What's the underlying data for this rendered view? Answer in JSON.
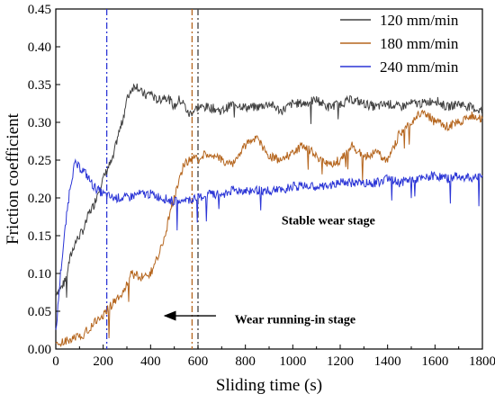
{
  "chart_data": {
    "type": "line",
    "title": "",
    "xlabel": "Sliding time (s)",
    "ylabel": "Friction coefficient",
    "xlim": [
      0,
      1800
    ],
    "ylim": [
      0,
      0.45
    ],
    "x_ticks": [
      0,
      200,
      400,
      600,
      800,
      1000,
      1200,
      1400,
      1600,
      1800
    ],
    "y_ticks": [
      "0.00",
      "0.05",
      "0.10",
      "0.15",
      "0.20",
      "0.25",
      "0.30",
      "0.35",
      "0.40",
      "0.45"
    ],
    "grid": false,
    "legend_position": "top-right",
    "series": [
      {
        "name": "120 mm/min",
        "color": "#404040",
        "x": [
          0,
          20,
          40,
          60,
          80,
          100,
          120,
          140,
          160,
          180,
          200,
          220,
          240,
          260,
          280,
          300,
          320,
          340,
          360,
          380,
          400,
          420,
          440,
          460,
          480,
          500,
          520,
          540,
          560,
          580,
          600,
          650,
          700,
          750,
          800,
          850,
          900,
          950,
          1000,
          1050,
          1100,
          1150,
          1200,
          1250,
          1300,
          1350,
          1400,
          1450,
          1500,
          1550,
          1600,
          1650,
          1700,
          1750,
          1800
        ],
        "y": [
          0.075,
          0.08,
          0.09,
          0.12,
          0.14,
          0.15,
          0.16,
          0.18,
          0.19,
          0.21,
          0.225,
          0.24,
          0.25,
          0.28,
          0.3,
          0.33,
          0.345,
          0.35,
          0.34,
          0.335,
          0.34,
          0.33,
          0.33,
          0.335,
          0.33,
          0.32,
          0.33,
          0.325,
          0.31,
          0.315,
          0.32,
          0.32,
          0.315,
          0.325,
          0.32,
          0.32,
          0.325,
          0.315,
          0.325,
          0.325,
          0.33,
          0.32,
          0.325,
          0.33,
          0.325,
          0.32,
          0.325,
          0.32,
          0.325,
          0.325,
          0.33,
          0.32,
          0.325,
          0.32,
          0.315
        ]
      },
      {
        "name": "180 mm/min",
        "color": "#b5651d",
        "x": [
          0,
          40,
          80,
          120,
          160,
          200,
          240,
          280,
          320,
          360,
          400,
          430,
          460,
          490,
          520,
          540,
          560,
          580,
          600,
          640,
          700,
          750,
          800,
          850,
          900,
          950,
          1000,
          1050,
          1100,
          1150,
          1200,
          1250,
          1300,
          1350,
          1400,
          1450,
          1500,
          1550,
          1600,
          1650,
          1700,
          1750,
          1800
        ],
        "y": [
          0.005,
          0.01,
          0.015,
          0.02,
          0.035,
          0.045,
          0.06,
          0.075,
          0.1,
          0.095,
          0.1,
          0.12,
          0.15,
          0.19,
          0.22,
          0.245,
          0.25,
          0.255,
          0.25,
          0.26,
          0.25,
          0.245,
          0.27,
          0.28,
          0.255,
          0.25,
          0.26,
          0.27,
          0.255,
          0.245,
          0.25,
          0.27,
          0.255,
          0.26,
          0.25,
          0.285,
          0.3,
          0.315,
          0.3,
          0.295,
          0.3,
          0.31,
          0.305
        ]
      },
      {
        "name": "240 mm/min",
        "color": "#2b35d6",
        "x": [
          0,
          20,
          40,
          60,
          80,
          100,
          120,
          140,
          160,
          180,
          200,
          240,
          300,
          350,
          400,
          450,
          500,
          550,
          600,
          650,
          700,
          750,
          800,
          850,
          900,
          950,
          1000,
          1050,
          1100,
          1150,
          1200,
          1250,
          1300,
          1350,
          1400,
          1450,
          1500,
          1550,
          1600,
          1650,
          1700,
          1750,
          1800
        ],
        "y": [
          0.02,
          0.1,
          0.16,
          0.215,
          0.245,
          0.24,
          0.235,
          0.225,
          0.215,
          0.21,
          0.205,
          0.2,
          0.2,
          0.205,
          0.205,
          0.2,
          0.195,
          0.195,
          0.2,
          0.205,
          0.205,
          0.21,
          0.21,
          0.21,
          0.21,
          0.21,
          0.215,
          0.215,
          0.215,
          0.215,
          0.22,
          0.22,
          0.22,
          0.22,
          0.225,
          0.22,
          0.225,
          0.225,
          0.23,
          0.225,
          0.23,
          0.225,
          0.23
        ]
      }
    ],
    "reference_lines": [
      {
        "x": 215,
        "color": "#2b35d6",
        "style": "dash-dot"
      },
      {
        "x": 575,
        "color": "#b5651d",
        "style": "dash-dot"
      },
      {
        "x": 600,
        "color": "#404040",
        "style": "dash-dot"
      }
    ],
    "annotations": [
      {
        "text": "Stable wear stage",
        "x": 1150,
        "y": 0.165
      },
      {
        "text": "Wear running-in stage",
        "x": 1010,
        "y": 0.04,
        "arrow_to": [
          460,
          0.044
        ]
      }
    ]
  }
}
